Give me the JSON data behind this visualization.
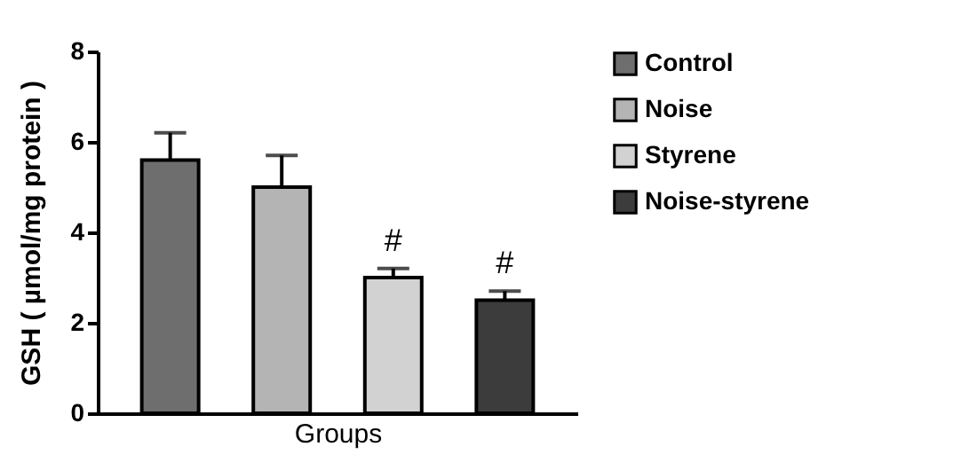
{
  "chart_data": {
    "type": "bar",
    "xlabel": "Groups",
    "ylabel": "GSH ( µmol/mg protein )",
    "categories": [
      null,
      null,
      null,
      null
    ],
    "series": [
      {
        "name": "Control",
        "color": "#6e6e6e",
        "values": [
          5.6,
          null,
          null,
          null
        ],
        "errors": [
          [
            5.6,
            6.2
          ],
          null,
          null,
          null
        ]
      },
      {
        "name": "Noise",
        "color": "#b4b4b4",
        "values": [
          null,
          5.0,
          null,
          null
        ],
        "errors": [
          null,
          [
            5.0,
            5.7
          ],
          null,
          null
        ]
      },
      {
        "name": "Styrene",
        "color": "#d2d2d2",
        "values": [
          null,
          null,
          3.0,
          null
        ],
        "errors": [
          null,
          null,
          [
            3.0,
            3.2
          ],
          null
        ],
        "value_labels": [
          null,
          null,
          "#",
          null
        ]
      },
      {
        "name": "Noise-styrene",
        "color": "#3c3c3c",
        "values": [
          null,
          null,
          null,
          2.5
        ],
        "errors": [
          null,
          null,
          null,
          [
            2.5,
            2.7
          ]
        ],
        "value_labels": [
          null,
          null,
          null,
          "#"
        ]
      }
    ],
    "ylim": [
      0,
      8
    ],
    "yticks": [
      0,
      2,
      4,
      6,
      8
    ],
    "tick_labels": "y",
    "legend": "right",
    "grid": false
  }
}
